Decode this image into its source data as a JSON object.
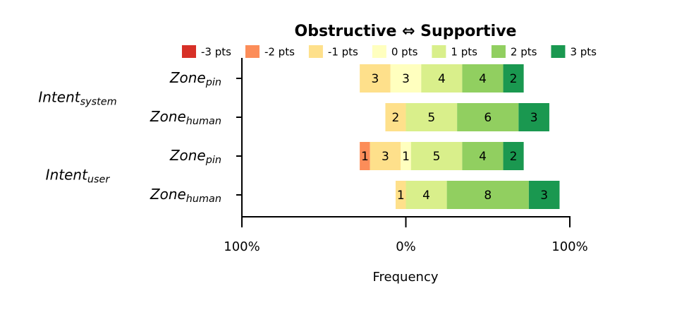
{
  "chart_data": {
    "type": "diverging-bar",
    "title": "Obstructive ⇔ Supportive",
    "xlabel": "Frequency",
    "categories": [
      {
        "text": "Zone",
        "sub": "pin"
      },
      {
        "text": "Zone",
        "sub": "human"
      },
      {
        "text": "Zone",
        "sub": "pin"
      },
      {
        "text": "Zone",
        "sub": "human"
      }
    ],
    "groups": [
      {
        "text": "Intent",
        "sub": "system"
      },
      {
        "text": "Intent",
        "sub": "user"
      }
    ],
    "series": [
      {
        "name": "-3 pts",
        "color": "#d73027",
        "values": [
          0,
          0,
          0,
          0
        ]
      },
      {
        "name": "-2 pts",
        "color": "#fc8d59",
        "values": [
          0,
          0,
          1,
          0
        ]
      },
      {
        "name": "-1 pts",
        "color": "#fee08b",
        "values": [
          3,
          2,
          3,
          1
        ]
      },
      {
        "name": "0 pts",
        "color": "#ffffbf",
        "values": [
          3,
          0,
          1,
          0
        ]
      },
      {
        "name": "1 pts",
        "color": "#d9ef8b",
        "values": [
          4,
          5,
          5,
          4
        ]
      },
      {
        "name": "2 pts",
        "color": "#91cf60",
        "values": [
          4,
          6,
          4,
          8
        ]
      },
      {
        "name": "3 pts",
        "color": "#1a9850",
        "values": [
          2,
          3,
          2,
          3
        ]
      }
    ],
    "xlim": [
      -100,
      100
    ],
    "xticks": [
      {
        "value": -100,
        "label": "100%"
      },
      {
        "value": 0,
        "label": "0%"
      },
      {
        "value": 100,
        "label": "100%"
      }
    ]
  }
}
